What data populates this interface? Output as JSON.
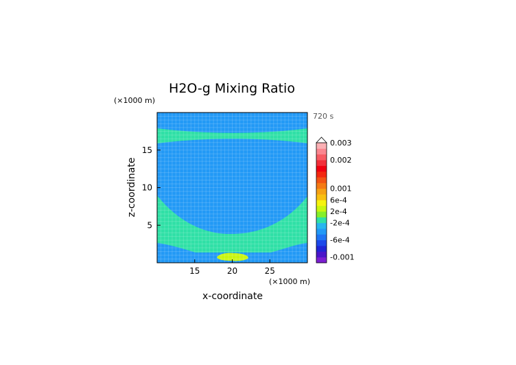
{
  "chart_data": {
    "type": "heatmap",
    "title": "H2O-g Mixing Ratio",
    "time_label": "720 s",
    "xlabel": "x-coordinate",
    "ylabel": "z-coordinate",
    "x_unit": "(×1000 m)",
    "y_unit": "(×1000 m)",
    "xlim": [
      10,
      30
    ],
    "ylim": [
      0,
      20
    ],
    "x_ticks": [
      {
        "value": 15,
        "label": "15"
      },
      {
        "value": 20,
        "label": "20"
      },
      {
        "value": 25,
        "label": "25"
      }
    ],
    "y_ticks": [
      {
        "value": 5,
        "label": "5"
      },
      {
        "value": 10,
        "label": "10"
      },
      {
        "value": 15,
        "label": "15"
      }
    ],
    "grid": true,
    "colorbar": {
      "levels": [
        {
          "color": "#7b1fd1"
        },
        {
          "color": "#4a16c9"
        },
        {
          "color": "#2025d6"
        },
        {
          "color": "#1c49ea"
        },
        {
          "color": "#1f74f4"
        },
        {
          "color": "#2299f6"
        },
        {
          "color": "#27b6ef"
        },
        {
          "color": "#2fe0a6"
        },
        {
          "color": "#85ef2a"
        },
        {
          "color": "#c9f60f"
        },
        {
          "color": "#f6f30e"
        },
        {
          "color": "#f9c010"
        },
        {
          "color": "#f6a214"
        },
        {
          "color": "#f57a14"
        },
        {
          "color": "#f25414"
        },
        {
          "color": "#f32810"
        },
        {
          "color": "#f00010"
        },
        {
          "color": "#f2303a"
        },
        {
          "color": "#f75c64"
        },
        {
          "color": "#fa8790"
        },
        {
          "color": "#fbb0b4"
        }
      ],
      "labels": [
        {
          "text": "0.003"
        },
        {
          "text": "0.002"
        },
        {
          "text": "0.001"
        },
        {
          "text": "6e-4"
        },
        {
          "text": "2e-4"
        },
        {
          "text": "-2e-4"
        },
        {
          "text": "-6e-4"
        },
        {
          "text": "-0.001"
        }
      ]
    },
    "regions": [
      {
        "name": "background",
        "value_range": "-6e-4 to -2e-4",
        "color": "#2299f6"
      },
      {
        "name": "upper band",
        "z_range": [
          16.2,
          17.8
        ],
        "value_range": "-2e-4 to 2e-4",
        "color": "#2fe0a6"
      },
      {
        "name": "lower dome",
        "z_range": [
          1.5,
          9.0
        ],
        "value_range": "-2e-4 to 2e-4",
        "color": "#2fe0a6"
      },
      {
        "name": "surface spot",
        "x_center": 20,
        "z_center": 0.9,
        "value_range": "2e-4 to 6e-4",
        "color": "#c9f60f"
      }
    ]
  }
}
